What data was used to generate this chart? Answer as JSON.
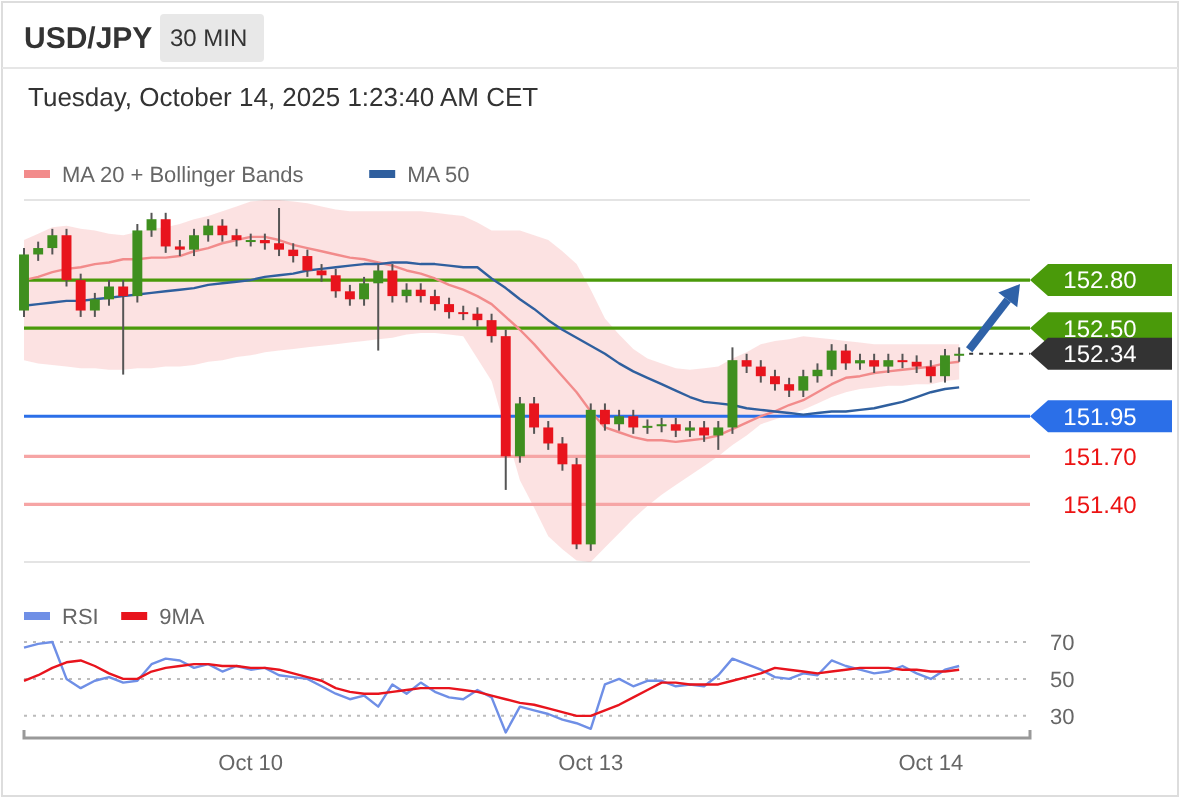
{
  "chart_data": [
    {
      "type": "candlestick",
      "title": "USD/JPY",
      "subtitle": "Tuesday, October 14, 2025 1:23:40 AM CET",
      "annotations": [
        "30 MIN"
      ],
      "categories": [
        null,
        null,
        null,
        null,
        null,
        null,
        null,
        null,
        null,
        null,
        null,
        null,
        null,
        null,
        null,
        null,
        null,
        null,
        null,
        null,
        null,
        null,
        null,
        null,
        null,
        null,
        null,
        null,
        null,
        null,
        null,
        null,
        null,
        null,
        null,
        null,
        null,
        null,
        null,
        null,
        null,
        null,
        null,
        null,
        null,
        null,
        null,
        null,
        null,
        null,
        null,
        null,
        null,
        null,
        null,
        null,
        null,
        null,
        null,
        null,
        null,
        null,
        null,
        null,
        null,
        null,
        null,
        null,
        null,
        null,
        null
      ],
      "ohlc": [
        [
          152.61,
          153.0,
          152.57,
          152.96
        ],
        [
          152.96,
          153.04,
          152.92,
          153.0
        ],
        [
          153.0,
          153.12,
          152.96,
          153.08
        ],
        [
          153.08,
          153.12,
          152.76,
          152.8
        ],
        [
          152.8,
          152.84,
          152.57,
          152.61
        ],
        [
          152.61,
          152.72,
          152.57,
          152.68
        ],
        [
          152.68,
          152.8,
          152.64,
          152.76
        ],
        [
          152.76,
          152.8,
          152.21,
          152.7
        ],
        [
          152.7,
          153.15,
          152.66,
          153.11
        ],
        [
          153.11,
          153.22,
          153.07,
          153.18
        ],
        [
          153.18,
          153.22,
          152.97,
          153.01
        ],
        [
          153.01,
          153.05,
          152.95,
          152.99
        ],
        [
          152.99,
          153.12,
          152.95,
          153.08
        ],
        [
          153.08,
          153.18,
          153.04,
          153.14
        ],
        [
          153.14,
          153.18,
          153.04,
          153.08
        ],
        [
          153.08,
          153.12,
          153.01,
          153.05
        ],
        [
          153.05,
          153.09,
          153.01,
          153.05
        ],
        [
          153.05,
          153.09,
          152.99,
          153.03
        ],
        [
          153.03,
          153.25,
          152.95,
          152.99
        ],
        [
          152.99,
          153.03,
          152.91,
          152.95
        ],
        [
          152.95,
          152.99,
          152.82,
          152.86
        ],
        [
          152.86,
          152.9,
          152.79,
          152.83
        ],
        [
          152.83,
          152.87,
          152.69,
          152.73
        ],
        [
          152.73,
          152.77,
          152.64,
          152.68
        ],
        [
          152.68,
          152.82,
          152.64,
          152.78
        ],
        [
          152.78,
          152.9,
          152.36,
          152.86
        ],
        [
          152.86,
          152.9,
          152.66,
          152.7
        ],
        [
          152.7,
          152.78,
          152.66,
          152.74
        ],
        [
          152.74,
          152.78,
          152.66,
          152.7
        ],
        [
          152.7,
          152.74,
          152.61,
          152.65
        ],
        [
          152.65,
          152.69,
          152.56,
          152.6
        ],
        [
          152.6,
          152.64,
          152.55,
          152.59
        ],
        [
          152.59,
          152.63,
          152.51,
          152.55
        ],
        [
          152.55,
          152.59,
          152.41,
          152.45
        ],
        [
          152.45,
          152.49,
          151.49,
          151.7
        ],
        [
          151.7,
          152.07,
          151.66,
          152.03
        ],
        [
          152.03,
          152.07,
          151.84,
          151.88
        ],
        [
          151.88,
          151.92,
          151.74,
          151.78
        ],
        [
          151.78,
          151.82,
          151.61,
          151.65
        ],
        [
          151.65,
          151.69,
          151.12,
          151.15
        ],
        [
          151.15,
          152.03,
          151.11,
          151.99
        ],
        [
          151.99,
          152.03,
          151.86,
          151.9
        ],
        [
          151.9,
          151.99,
          151.86,
          151.95
        ],
        [
          151.95,
          151.99,
          151.84,
          151.88
        ],
        [
          151.88,
          151.93,
          151.84,
          151.89
        ],
        [
          151.89,
          151.94,
          151.85,
          151.9
        ],
        [
          151.9,
          151.94,
          151.82,
          151.86
        ],
        [
          151.86,
          151.92,
          151.82,
          151.88
        ],
        [
          151.88,
          151.92,
          151.79,
          151.83
        ],
        [
          151.83,
          151.92,
          151.74,
          151.88
        ],
        [
          151.88,
          152.38,
          151.84,
          152.3
        ],
        [
          152.3,
          152.34,
          152.22,
          152.26
        ],
        [
          152.26,
          152.3,
          152.16,
          152.2
        ],
        [
          152.2,
          152.24,
          152.11,
          152.15
        ],
        [
          152.15,
          152.19,
          152.07,
          152.11
        ],
        [
          152.11,
          152.24,
          152.07,
          152.2
        ],
        [
          152.2,
          152.28,
          152.16,
          152.24
        ],
        [
          152.24,
          152.4,
          152.2,
          152.36
        ],
        [
          152.36,
          152.4,
          152.24,
          152.28
        ],
        [
          152.28,
          152.34,
          152.24,
          152.3
        ],
        [
          152.3,
          152.34,
          152.22,
          152.26
        ],
        [
          152.26,
          152.34,
          152.22,
          152.3
        ],
        [
          152.3,
          152.34,
          152.25,
          152.29
        ],
        [
          152.29,
          152.33,
          152.22,
          152.26
        ],
        [
          152.26,
          152.3,
          152.16,
          152.2
        ],
        [
          152.2,
          152.37,
          152.16,
          152.33
        ],
        [
          152.33,
          152.38,
          152.29,
          152.34
        ],
        null,
        null,
        null,
        null
      ],
      "series": [
        {
          "type": "line",
          "name": "MA 20 + Bollinger Bands",
          "color": "#f28b8b",
          "values": [
            152.8,
            152.82,
            152.85,
            152.87,
            152.88,
            152.9,
            152.91,
            152.93,
            152.93,
            152.94,
            152.94,
            152.95,
            152.98,
            153.0,
            153.03,
            153.05,
            153.07,
            153.07,
            153.05,
            153.02,
            153.0,
            152.98,
            152.96,
            152.94,
            152.93,
            152.91,
            152.89,
            152.86,
            152.84,
            152.81,
            152.77,
            152.74,
            152.7,
            152.65,
            152.57,
            152.49,
            152.4,
            152.3,
            152.2,
            152.1,
            151.98,
            151.88,
            151.85,
            151.82,
            151.8,
            151.8,
            151.79,
            151.8,
            151.81,
            151.83,
            151.87,
            151.91,
            151.95,
            151.98,
            152.02,
            152.05,
            152.1,
            152.15,
            152.19,
            152.2,
            152.22,
            152.23,
            152.24,
            152.25,
            152.26,
            152.28,
            152.29,
            null,
            null,
            null,
            null
          ],
          "upper": [
            153.05,
            153.09,
            153.13,
            153.14,
            153.12,
            153.11,
            153.09,
            153.08,
            153.1,
            153.12,
            153.13,
            153.15,
            153.18,
            153.2,
            153.23,
            153.26,
            153.29,
            153.3,
            153.3,
            153.29,
            153.28,
            153.26,
            153.24,
            153.23,
            153.23,
            153.23,
            153.23,
            153.23,
            153.23,
            153.22,
            153.21,
            153.2,
            153.16,
            153.11,
            153.11,
            153.11,
            153.08,
            153.05,
            152.98,
            152.9,
            152.74,
            152.56,
            152.46,
            152.37,
            152.31,
            152.28,
            152.25,
            152.24,
            152.25,
            152.26,
            152.31,
            152.35,
            152.4,
            152.42,
            152.43,
            152.45,
            152.44,
            152.43,
            152.42,
            152.41,
            152.4,
            152.4,
            152.4,
            152.4,
            152.4,
            152.4,
            152.4,
            null,
            null,
            null,
            null
          ],
          "lower": [
            152.3,
            152.28,
            152.27,
            152.26,
            152.25,
            152.25,
            152.24,
            152.24,
            152.25,
            152.25,
            152.26,
            152.26,
            152.27,
            152.29,
            152.3,
            152.32,
            152.33,
            152.35,
            152.36,
            152.37,
            152.38,
            152.39,
            152.4,
            152.41,
            152.42,
            152.43,
            152.44,
            152.46,
            152.47,
            152.47,
            152.46,
            152.45,
            152.31,
            152.17,
            151.86,
            151.55,
            151.38,
            151.2,
            151.12,
            151.05,
            151.04,
            151.13,
            151.22,
            151.31,
            151.39,
            151.46,
            151.52,
            151.58,
            151.64,
            151.7,
            151.77,
            151.83,
            151.9,
            151.93,
            151.96,
            151.99,
            152.03,
            152.07,
            152.1,
            152.12,
            152.13,
            152.14,
            152.14,
            152.15,
            152.15,
            152.17,
            152.18,
            null,
            null,
            null,
            null
          ]
        },
        {
          "type": "line",
          "name": "MA 50",
          "color": "#2f5f9e",
          "values": [
            152.64,
            152.65,
            152.66,
            152.67,
            152.67,
            152.68,
            152.69,
            152.7,
            152.71,
            152.72,
            152.73,
            152.74,
            152.75,
            152.77,
            152.78,
            152.79,
            152.8,
            152.82,
            152.83,
            152.84,
            152.86,
            152.87,
            152.88,
            152.89,
            152.9,
            152.9,
            152.91,
            152.91,
            152.9,
            152.9,
            152.89,
            152.88,
            152.88,
            152.81,
            152.75,
            152.68,
            152.62,
            152.55,
            152.49,
            152.44,
            152.39,
            152.34,
            152.28,
            152.23,
            152.19,
            152.15,
            152.11,
            152.07,
            152.04,
            152.03,
            152.02,
            152.0,
            151.99,
            151.98,
            151.97,
            151.96,
            151.97,
            151.98,
            151.98,
            151.99,
            152.0,
            152.02,
            152.04,
            152.07,
            152.1,
            152.12,
            152.13,
            null,
            null,
            null,
            null
          ]
        }
      ],
      "ref_lines": [
        {
          "axis": "y",
          "value": 152.8,
          "color": "#4a9a0a"
        },
        {
          "axis": "y",
          "value": 152.5,
          "color": "#4a9a0a"
        },
        {
          "axis": "y",
          "value": 151.95,
          "color": "#2b6fe8"
        },
        {
          "axis": "y",
          "value": 151.7,
          "color": "#f6a5a5"
        },
        {
          "axis": "y",
          "value": 151.4,
          "color": "#f6a5a5"
        }
      ],
      "ylim": [
        151.04,
        153.3
      ],
      "yticks": [
        {
          "value": 152.8,
          "label": "152.80"
        },
        {
          "value": 152.5,
          "label": "152.50"
        },
        {
          "value": 152.34,
          "label": "152.34"
        },
        {
          "value": 151.95,
          "label": "151.95"
        },
        {
          "value": 151.7,
          "label": "151.70"
        },
        {
          "value": 151.4,
          "label": "151.40"
        }
      ],
      "legend": "top left"
    },
    {
      "type": "line",
      "categories": [
        null,
        null,
        null,
        null,
        null,
        null,
        null,
        null,
        null,
        null,
        null,
        null,
        null,
        null,
        null,
        null,
        "Oct 10",
        null,
        null,
        null,
        null,
        null,
        null,
        null,
        null,
        null,
        null,
        null,
        null,
        null,
        null,
        null,
        null,
        null,
        null,
        null,
        null,
        null,
        null,
        null,
        "Oct 13",
        null,
        null,
        null,
        null,
        null,
        null,
        null,
        null,
        null,
        null,
        null,
        null,
        null,
        null,
        null,
        null,
        null,
        null,
        null,
        null,
        null,
        null,
        null,
        "Oct 14",
        null,
        null,
        null,
        null,
        null,
        null
      ],
      "series": [
        {
          "name": "RSI",
          "color": "#6f8fe6",
          "values": [
            67,
            69,
            70,
            50,
            45,
            49,
            51,
            48,
            49,
            58,
            61,
            60,
            56,
            58,
            54,
            57,
            55,
            56,
            52,
            51,
            50,
            46,
            42,
            39,
            41,
            35,
            47,
            42,
            48,
            43,
            40,
            39,
            44,
            40,
            21,
            35,
            33,
            31,
            28,
            26,
            23,
            47,
            50,
            46,
            49,
            49,
            46,
            47,
            46,
            52,
            61,
            58,
            55,
            51,
            50,
            53,
            52,
            60,
            57,
            55,
            53,
            54,
            57,
            53,
            50,
            55,
            57,
            null,
            null,
            null,
            null
          ]
        },
        {
          "name": "9MA",
          "color": "#e8141d",
          "values": [
            49,
            52,
            56,
            59,
            60,
            57,
            53,
            50,
            50,
            54,
            56,
            57,
            58,
            58,
            57,
            57,
            56,
            56,
            55,
            53,
            51,
            49,
            45,
            43,
            42,
            42,
            43,
            44,
            45,
            45,
            45,
            44,
            43,
            41,
            39,
            37,
            36,
            34,
            32,
            30,
            30,
            33,
            36,
            40,
            44,
            48,
            48,
            47,
            47,
            47,
            49,
            51,
            53,
            56,
            55,
            54,
            53,
            54,
            55,
            56,
            56,
            56,
            55,
            55,
            54,
            54,
            55,
            null,
            null,
            null,
            null
          ]
        }
      ],
      "ylim": [
        18,
        70
      ],
      "yticks": [
        30,
        50,
        70
      ],
      "grid": "y",
      "legend": "top left"
    }
  ]
}
